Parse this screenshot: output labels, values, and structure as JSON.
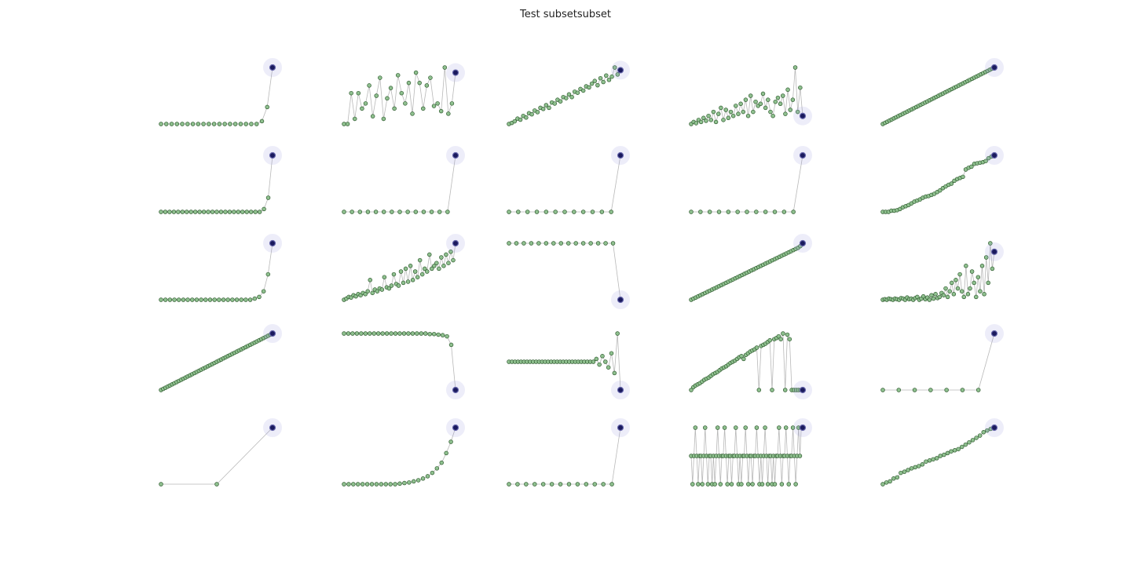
{
  "title": "Test subsetsubset",
  "chart_data": {
    "type": "scatter",
    "rows": 5,
    "cols": 5,
    "panels": [
      {
        "y": [
          0,
          0,
          0,
          0,
          0,
          0,
          0,
          0,
          0,
          0,
          0,
          0,
          0,
          0,
          0,
          0,
          0,
          0,
          0,
          0.05,
          0.3,
          1
        ],
        "best": "last"
      },
      {
        "y": [
          0,
          0,
          0.6,
          0.1,
          0.6,
          0.3,
          0.4,
          0.75,
          0.15,
          0.55,
          0.9,
          0.1,
          0.5,
          0.7,
          0.3,
          0.95,
          0.6,
          0.4,
          0.8,
          0.2,
          1,
          0.8,
          0.3,
          0.75,
          0.9,
          0.35,
          0.4,
          0.25,
          1.1,
          0.2,
          0.4,
          1
        ],
        "best": "last"
      },
      {
        "y": [
          0,
          0.02,
          0.05,
          0.1,
          0.08,
          0.15,
          0.12,
          0.2,
          0.18,
          0.25,
          0.22,
          0.3,
          0.28,
          0.35,
          0.3,
          0.4,
          0.38,
          0.45,
          0.42,
          0.5,
          0.48,
          0.55,
          0.5,
          0.6,
          0.58,
          0.65,
          0.62,
          0.7,
          0.68,
          0.75,
          0.8,
          0.72,
          0.85,
          0.78,
          0.9,
          0.82,
          0.88,
          1.05,
          0.92,
          1
        ],
        "best": "last"
      },
      {
        "y": [
          0,
          0.05,
          0.02,
          0.1,
          0.05,
          0.15,
          0.08,
          0.2,
          0.1,
          0.3,
          0.05,
          0.25,
          0.4,
          0.1,
          0.35,
          0.15,
          0.3,
          0.2,
          0.45,
          0.25,
          0.5,
          0.3,
          0.6,
          0.2,
          0.7,
          0.3,
          0.55,
          0.45,
          0.5,
          0.75,
          0.4,
          0.6,
          0.3,
          0.2,
          0.55,
          0.65,
          0.5,
          0.7,
          0.25,
          0.85,
          0.35,
          0.6,
          1.4,
          0.3,
          0.9,
          0.2
        ],
        "best": "last"
      },
      {
        "y": [
          0,
          0.02,
          0.04,
          0.06,
          0.08,
          0.1,
          0.12,
          0.14,
          0.16,
          0.18,
          0.2,
          0.22,
          0.24,
          0.26,
          0.28,
          0.3,
          0.32,
          0.34,
          0.36,
          0.38,
          0.4,
          0.42,
          0.44,
          0.46,
          0.48,
          0.5,
          0.52,
          0.54,
          0.56,
          0.58,
          0.6,
          0.62,
          0.64,
          0.66,
          0.68,
          0.7,
          0.72,
          0.74,
          0.76,
          0.78,
          0.8,
          0.82,
          0.84,
          0.86,
          0.88,
          0.9,
          0.92,
          0.94,
          0.96,
          0.98,
          1
        ],
        "best": "last"
      },
      {
        "y": [
          0,
          0,
          0,
          0,
          0,
          0,
          0,
          0,
          0,
          0,
          0,
          0,
          0,
          0,
          0,
          0,
          0,
          0,
          0,
          0,
          0,
          0,
          0,
          0,
          0.05,
          0.25,
          1
        ],
        "best": "last"
      },
      {
        "y": [
          0,
          0,
          0,
          0,
          0,
          0,
          0,
          0,
          0,
          0,
          0,
          0,
          0,
          0,
          1
        ],
        "best": "last"
      },
      {
        "y": [
          0,
          0,
          0,
          0,
          0,
          0,
          0,
          0,
          0,
          0,
          0,
          0,
          1
        ],
        "best": "last"
      },
      {
        "y": [
          0,
          0,
          0,
          0,
          0,
          0,
          0,
          0,
          0,
          0,
          0,
          0,
          1
        ],
        "best": "last"
      },
      {
        "y": [
          0,
          0,
          0,
          0.02,
          0.02,
          0.03,
          0.05,
          0.08,
          0.1,
          0.12,
          0.15,
          0.18,
          0.2,
          0.22,
          0.25,
          0.27,
          0.28,
          0.3,
          0.32,
          0.35,
          0.38,
          0.42,
          0.45,
          0.48,
          0.5,
          0.55,
          0.58,
          0.6,
          0.62,
          0.75,
          0.78,
          0.8,
          0.85,
          0.86,
          0.87,
          0.88,
          0.9,
          0.95,
          0.98,
          1
        ],
        "best": "last"
      },
      {
        "y": [
          0,
          0,
          0,
          0,
          0,
          0,
          0,
          0,
          0,
          0,
          0,
          0,
          0,
          0,
          0,
          0,
          0,
          0,
          0,
          0,
          0,
          0.02,
          0.05,
          0.15,
          0.45,
          1
        ],
        "best": "last"
      },
      {
        "y": [
          0,
          0.02,
          0.05,
          0.04,
          0.08,
          0.06,
          0.1,
          0.08,
          0.12,
          0.1,
          0.15,
          0.35,
          0.12,
          0.18,
          0.15,
          0.2,
          0.18,
          0.4,
          0.22,
          0.2,
          0.25,
          0.45,
          0.28,
          0.25,
          0.5,
          0.3,
          0.55,
          0.32,
          0.6,
          0.35,
          0.5,
          0.4,
          0.7,
          0.45,
          0.55,
          0.5,
          0.8,
          0.55,
          0.6,
          0.65,
          0.55,
          0.75,
          0.6,
          0.8,
          0.65,
          0.85,
          0.7,
          1
        ],
        "best": "last"
      },
      {
        "y": [
          1,
          1,
          1,
          1,
          1,
          1,
          1,
          1,
          1,
          1,
          1,
          1,
          1,
          1,
          1,
          0
        ],
        "best": "last"
      },
      {
        "y": [
          0,
          0.02,
          0.04,
          0.06,
          0.08,
          0.1,
          0.12,
          0.14,
          0.16,
          0.18,
          0.2,
          0.22,
          0.24,
          0.26,
          0.28,
          0.3,
          0.32,
          0.34,
          0.36,
          0.38,
          0.4,
          0.42,
          0.44,
          0.46,
          0.48,
          0.5,
          0.52,
          0.54,
          0.56,
          0.58,
          0.6,
          0.62,
          0.64,
          0.66,
          0.68,
          0.7,
          0.72,
          0.74,
          0.76,
          0.78,
          0.8,
          0.82,
          0.84,
          0.86,
          0.88,
          0.9,
          0.92,
          0.95,
          1
        ],
        "best": "last"
      },
      {
        "y": [
          0,
          0.01,
          0,
          0.02,
          0.01,
          0,
          0.02,
          0.01,
          0,
          0.03,
          0.02,
          0,
          0.04,
          0.01,
          0.02,
          0,
          0.03,
          0.05,
          0,
          0.02,
          0.06,
          0.01,
          0.04,
          0,
          0.08,
          0.02,
          0.1,
          0.03,
          0.05,
          0.12,
          0.08,
          0.2,
          0.05,
          0.15,
          0.3,
          0.1,
          0.35,
          0.2,
          0.45,
          0.15,
          0.05,
          0.6,
          0.1,
          0.2,
          0.5,
          0.3,
          0.05,
          0.4,
          0.15,
          0.6,
          0.1,
          0.75,
          0.3,
          1,
          0.55,
          0.85
        ],
        "best": "last"
      },
      {
        "y": [
          0,
          0.02,
          0.04,
          0.06,
          0.08,
          0.1,
          0.12,
          0.14,
          0.16,
          0.18,
          0.2,
          0.22,
          0.24,
          0.26,
          0.28,
          0.3,
          0.32,
          0.34,
          0.36,
          0.38,
          0.4,
          0.42,
          0.44,
          0.46,
          0.48,
          0.5,
          0.52,
          0.54,
          0.56,
          0.58,
          0.6,
          0.62,
          0.64,
          0.66,
          0.68,
          0.7,
          0.72,
          0.74,
          0.76,
          0.78,
          0.8,
          0.82,
          0.84,
          0.86,
          0.88,
          0.9,
          0.92,
          0.94,
          0.96,
          0.98,
          1
        ],
        "best": "last"
      },
      {
        "y": [
          1,
          1,
          1,
          1,
          1,
          1,
          1,
          1,
          1,
          1,
          1,
          1,
          1,
          1,
          1,
          1,
          1,
          1,
          1,
          1,
          0.99,
          0.99,
          0.98,
          0.97,
          0.95,
          0.8,
          0
        ],
        "best": "last"
      },
      {
        "y": [
          0.5,
          0.5,
          0.5,
          0.5,
          0.5,
          0.5,
          0.5,
          0.5,
          0.5,
          0.5,
          0.5,
          0.5,
          0.5,
          0.5,
          0.5,
          0.5,
          0.5,
          0.5,
          0.5,
          0.5,
          0.5,
          0.5,
          0.5,
          0.5,
          0.5,
          0.5,
          0.5,
          0.5,
          0.5,
          0.55,
          0.45,
          0.6,
          0.5,
          0.4,
          0.65,
          0.3,
          1,
          0
        ],
        "best": "last"
      },
      {
        "y": [
          0,
          0.05,
          0.08,
          0.1,
          0.12,
          0.15,
          0.18,
          0.2,
          0.22,
          0.25,
          0.28,
          0.3,
          0.32,
          0.35,
          0.38,
          0.4,
          0.42,
          0.45,
          0.48,
          0.5,
          0.52,
          0.55,
          0.58,
          0.6,
          0.55,
          0.62,
          0.65,
          0.68,
          0.7,
          0.72,
          0.75,
          0,
          0.78,
          0.8,
          0.82,
          0.85,
          0.88,
          0,
          0.9,
          0.92,
          0.95,
          0.9,
          1,
          0,
          0.98,
          0.9,
          0,
          0,
          0,
          0,
          0,
          0
        ],
        "best": "last"
      },
      {
        "y": [
          0,
          0,
          0,
          0,
          0,
          0,
          0,
          1
        ],
        "best": "last"
      },
      {
        "y": [
          0,
          0,
          1
        ],
        "best": "last"
      },
      {
        "y": [
          0,
          0,
          0,
          0,
          0,
          0,
          0,
          0,
          0,
          0,
          0,
          0,
          0.01,
          0.02,
          0.03,
          0.05,
          0.07,
          0.1,
          0.14,
          0.2,
          0.28,
          0.38,
          0.55,
          0.75,
          1
        ],
        "best": "last"
      },
      {
        "y": [
          0,
          0,
          0,
          0,
          0,
          0,
          0,
          0,
          0,
          0,
          0,
          0,
          0,
          1
        ],
        "best": "last"
      },
      {
        "y": [
          0.5,
          0,
          0.5,
          1,
          0.5,
          0,
          0.5,
          0.5,
          0,
          0.5,
          1,
          0.5,
          0,
          0.5,
          0.5,
          0,
          0.5,
          0,
          0.5,
          1,
          0.5,
          0,
          0.5,
          0.5,
          1,
          0.5,
          0,
          0.5,
          0.5,
          0,
          0.5,
          0.5,
          1,
          0.5,
          0,
          0.5,
          0,
          0.5,
          0.5,
          1,
          0.5,
          0,
          0.5,
          0.5,
          0,
          0.5,
          0.5,
          1,
          0.5,
          0,
          0.5,
          0,
          0.5,
          1,
          0.5,
          0,
          0.5,
          0.5,
          0,
          0.5,
          0,
          0.5,
          0.5,
          1,
          0.5,
          0,
          0.5,
          0.5,
          1,
          0.5,
          0,
          0.5,
          0.5,
          1,
          0.5,
          0,
          0.5,
          1,
          0.5,
          1,
          1
        ],
        "best": "last"
      },
      {
        "y": [
          0,
          0.03,
          0.05,
          0.1,
          0.12,
          0.2,
          0.22,
          0.25,
          0.28,
          0.3,
          0.32,
          0.35,
          0.4,
          0.42,
          0.44,
          0.46,
          0.5,
          0.52,
          0.55,
          0.58,
          0.6,
          0.62,
          0.66,
          0.7,
          0.74,
          0.78,
          0.82,
          0.86,
          0.92,
          0.95,
          0.98,
          1
        ],
        "best": "last"
      }
    ]
  }
}
